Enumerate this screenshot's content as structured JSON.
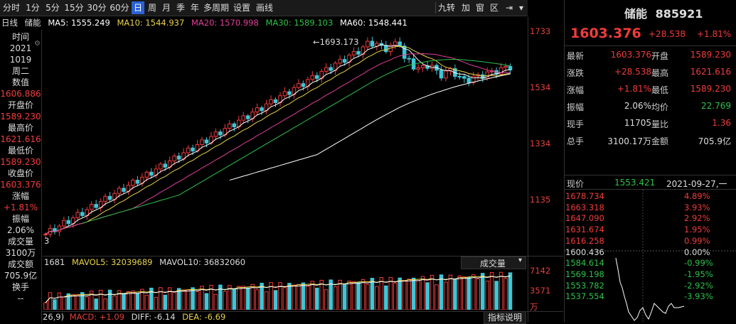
{
  "toolbar": {
    "periods": [
      "分时",
      "1分",
      "5分",
      "15分",
      "30分",
      "60分",
      "日",
      "周",
      "月",
      "季",
      "年",
      "多周期",
      "设置",
      "画线"
    ],
    "active_period": "日",
    "right_buttons": [
      "九转",
      "加",
      "窗",
      "区"
    ]
  },
  "ma_bar": {
    "period": "日线",
    "name": "储能",
    "ma5": "MA5: 1555.249",
    "ma10": "MA10: 1544.937",
    "ma20": "MA20: 1570.998",
    "ma30": "MA30: 1589.103",
    "ma60": "MA60: 1548.441",
    "colors": {
      "ma5": "#ffffff",
      "ma10": "#e8d34a",
      "ma20": "#e0409a",
      "ma30": "#2ec14a",
      "ma60": "#ffffff"
    }
  },
  "info_panel": {
    "time_label": "时间",
    "year": "2021",
    "date": "1019",
    "weekday": "周二",
    "value_label": "数值",
    "value": "1606.886",
    "open_label": "开盘价",
    "open": "1589.230",
    "high_label": "最高价",
    "high": "1621.616",
    "low_label": "最低价",
    "low": "1589.230",
    "close_label": "收盘价",
    "close": "1603.376",
    "change_label": "涨幅",
    "change": "+1.81%",
    "amplitude_label": "振幅",
    "amplitude": "2.06%",
    "volume_label": "成交量",
    "volume": "3100万",
    "amount_label": "成交额",
    "amount": "705.9亿",
    "turnover_label": "换手",
    "turnover": "--"
  },
  "main_chart": {
    "y_ticks": [
      "1733",
      "1534",
      "1334",
      "1135"
    ],
    "max_annotation": "1693.173",
    "left_cut_label": "3"
  },
  "volume_bar": {
    "vol": "1681",
    "mavol5": "MAVOL5: 32039689",
    "mavol10": "MAVOL10: 36832060",
    "dropdown": "成交量",
    "y_ticks": [
      "7142",
      "3571"
    ],
    "unit": "万"
  },
  "macd_bar": {
    "params": "26,9)",
    "macd": "MACD: +1.09",
    "diff": "DIFF: -6.14",
    "dea": "DEA: -6.69",
    "help": "指标说明"
  },
  "quote": {
    "name": "储能",
    "code": "885921",
    "price": "1603.376",
    "change": "+28.538",
    "change_pct": "+1.81%",
    "rows": [
      {
        "l1": "最新",
        "v1": "1603.376",
        "c1": "red",
        "l2": "开盘",
        "v2": "1589.230",
        "c2": "red"
      },
      {
        "l1": "涨跌",
        "v1": "+28.538",
        "c1": "red",
        "l2": "最高",
        "v2": "1621.616",
        "c2": "red"
      },
      {
        "l1": "涨幅",
        "v1": "+1.81%",
        "c1": "red",
        "l2": "最低",
        "v2": "1589.230",
        "c2": "red"
      },
      {
        "l1": "振幅",
        "v1": "2.06%",
        "c1": "white",
        "l2": "均价",
        "v2": "22.769",
        "c2": "green"
      },
      {
        "l1": "现手",
        "v1": "11705",
        "c1": "white",
        "l2": "量比",
        "v2": "1.36",
        "c2": "red"
      },
      {
        "l1": "总手",
        "v1": "3100.17万",
        "c1": "white",
        "l2": "金额",
        "v2": "705.9亿",
        "c2": "white"
      }
    ],
    "current_label": "现价",
    "current_value": "1553.421",
    "current_date": "2021-09-27,一"
  },
  "mini_chart": {
    "prices": [
      "1678.734",
      "1663.318",
      "1647.090",
      "1631.674",
      "1616.258",
      "1600.436",
      "1584.614",
      "1569.198",
      "1553.782",
      "1537.554"
    ],
    "pcts": [
      "4.89%",
      "3.93%",
      "2.92%",
      "1.95%",
      "0.99%",
      "0.00%",
      "-0.99%",
      "-1.95%",
      "-2.92%",
      "-3.93%"
    ]
  }
}
